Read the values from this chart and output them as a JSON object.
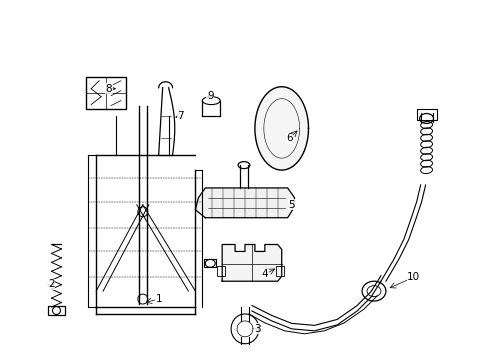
{
  "background_color": "#ffffff",
  "line_color": "#000000",
  "figsize": [
    4.89,
    3.6
  ],
  "dpi": 100
}
